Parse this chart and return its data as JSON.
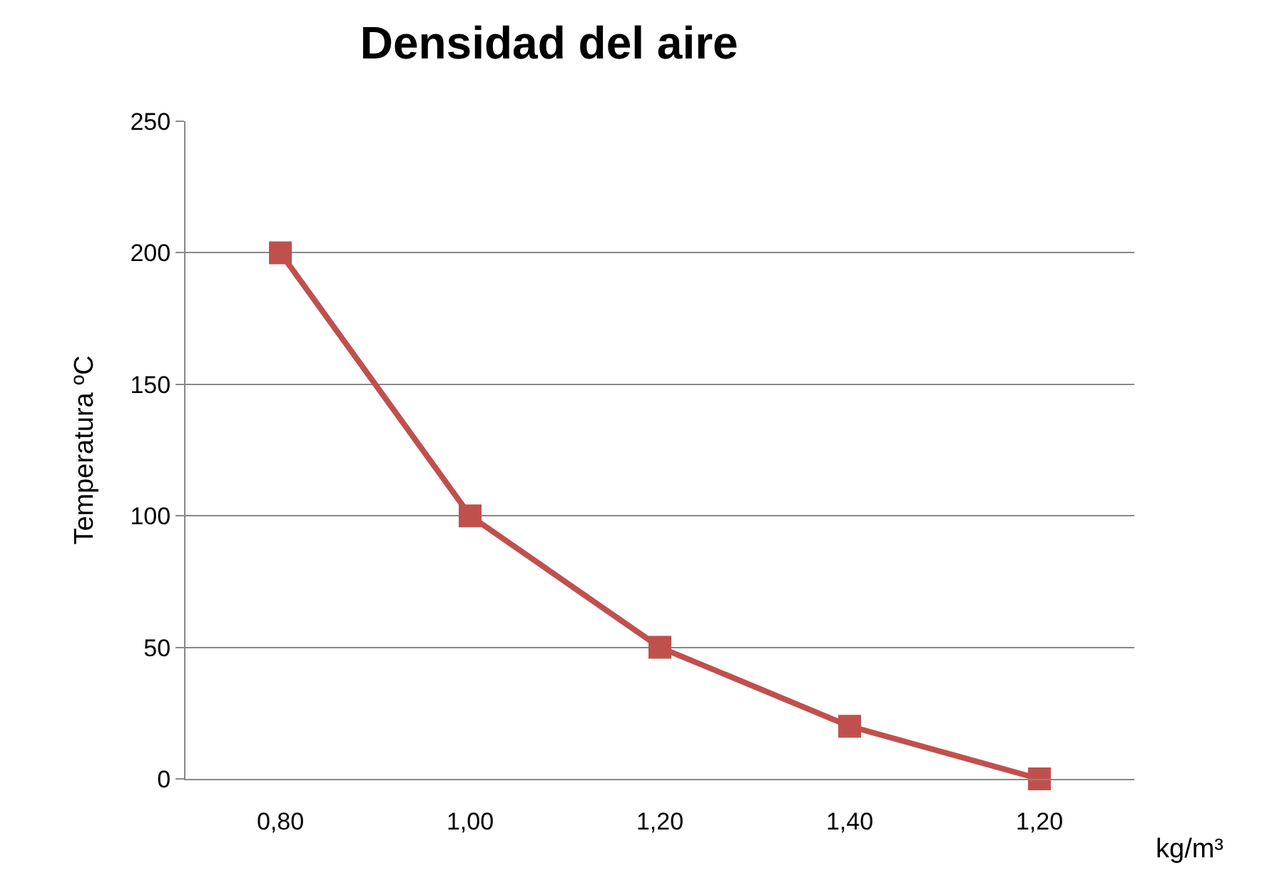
{
  "chart_data": {
    "type": "line",
    "title": "Densidad del aire",
    "xlabel": "kg/m³",
    "ylabel": "Temperatura ºC",
    "categories": [
      "0,80",
      "1,00",
      "1,20",
      "1,40",
      "1,20"
    ],
    "series": [
      {
        "color": "#c0504d",
        "values": [
          200,
          100,
          50,
          20,
          0
        ]
      }
    ],
    "ylim": [
      0,
      250
    ],
    "yticks": [
      0,
      50,
      100,
      150,
      200,
      250
    ],
    "grid": "y",
    "marker": "square",
    "line_style": "solid"
  }
}
